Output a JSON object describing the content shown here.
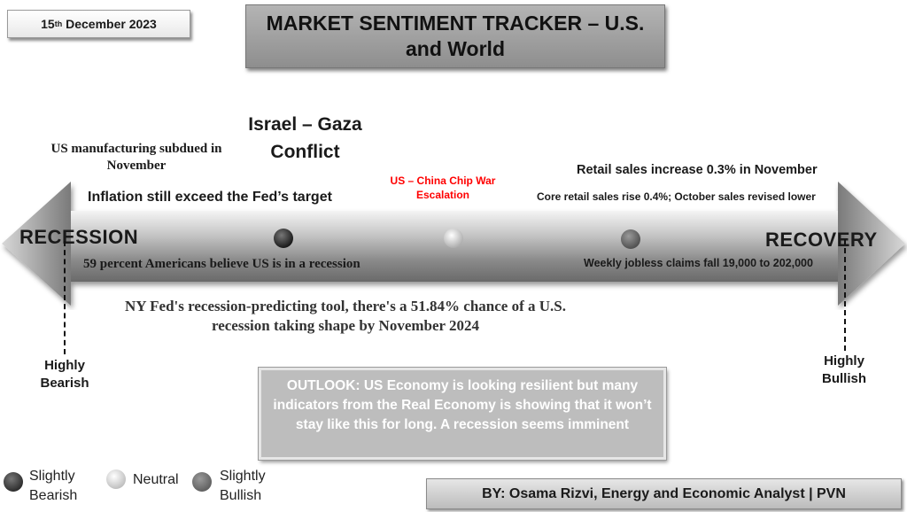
{
  "header": {
    "date_day": "15",
    "date_suffix": "th",
    "date_rest": " December 2023",
    "title_line1": "MARKET SENTIMENT TRACKER – U.S.",
    "title_line2": "and World"
  },
  "scale": {
    "left_end": "RECESSION",
    "right_end": "RECOVERY",
    "left_extreme_line1": "Highly",
    "left_extreme_line2": "Bearish",
    "right_extreme_line1": "Highly",
    "right_extreme_line2": "Bullish"
  },
  "indicators": {
    "manufacturing_line1": "US manufacturing subdued in",
    "manufacturing_line2": "November",
    "israel_line1": "Israel – Gaza",
    "israel_line2": "Conflict",
    "inflation": "Inflation still exceed the Fed’s target",
    "chip_war_line1": "US – China Chip War",
    "chip_war_line2": "Escalation",
    "retail_sales": "Retail sales increase 0.3% in November",
    "core_retail": "Core retail sales rise 0.4%; October sales revised lower",
    "americans_recession": "59 percent Americans believe US is in a recession",
    "jobless_claims": "Weekly jobless claims fall 19,000 to 202,000",
    "ny_fed_line1": "NY Fed's recession-predicting tool, there's a 51.84% chance of a U.S.",
    "ny_fed_line2": "recession taking shape by November 2024"
  },
  "markers": [
    {
      "name": "slightly-bearish",
      "color": "#2a2a2a"
    },
    {
      "name": "neutral",
      "color": "#eeeeee"
    },
    {
      "name": "slightly-bullish",
      "color": "#6e6e6e"
    }
  ],
  "outlook": {
    "text": "OUTLOOK: US Economy is looking resilient but many indicators from the Real Economy is showing that it won’t stay like this for long. A recession seems imminent"
  },
  "legend": {
    "slightly_bearish_line1": "Slightly",
    "slightly_bearish_line2": "Bearish",
    "neutral": "Neutral",
    "slightly_bullish_line1": "Slightly",
    "slightly_bullish_line2": "Bullish"
  },
  "footer": {
    "author": "BY: Osama Rizvi, Energy and Economic Analyst | PVN"
  },
  "colors": {
    "highlight_red": "#ff0000",
    "arrow_gray": "#8c8c8c"
  }
}
